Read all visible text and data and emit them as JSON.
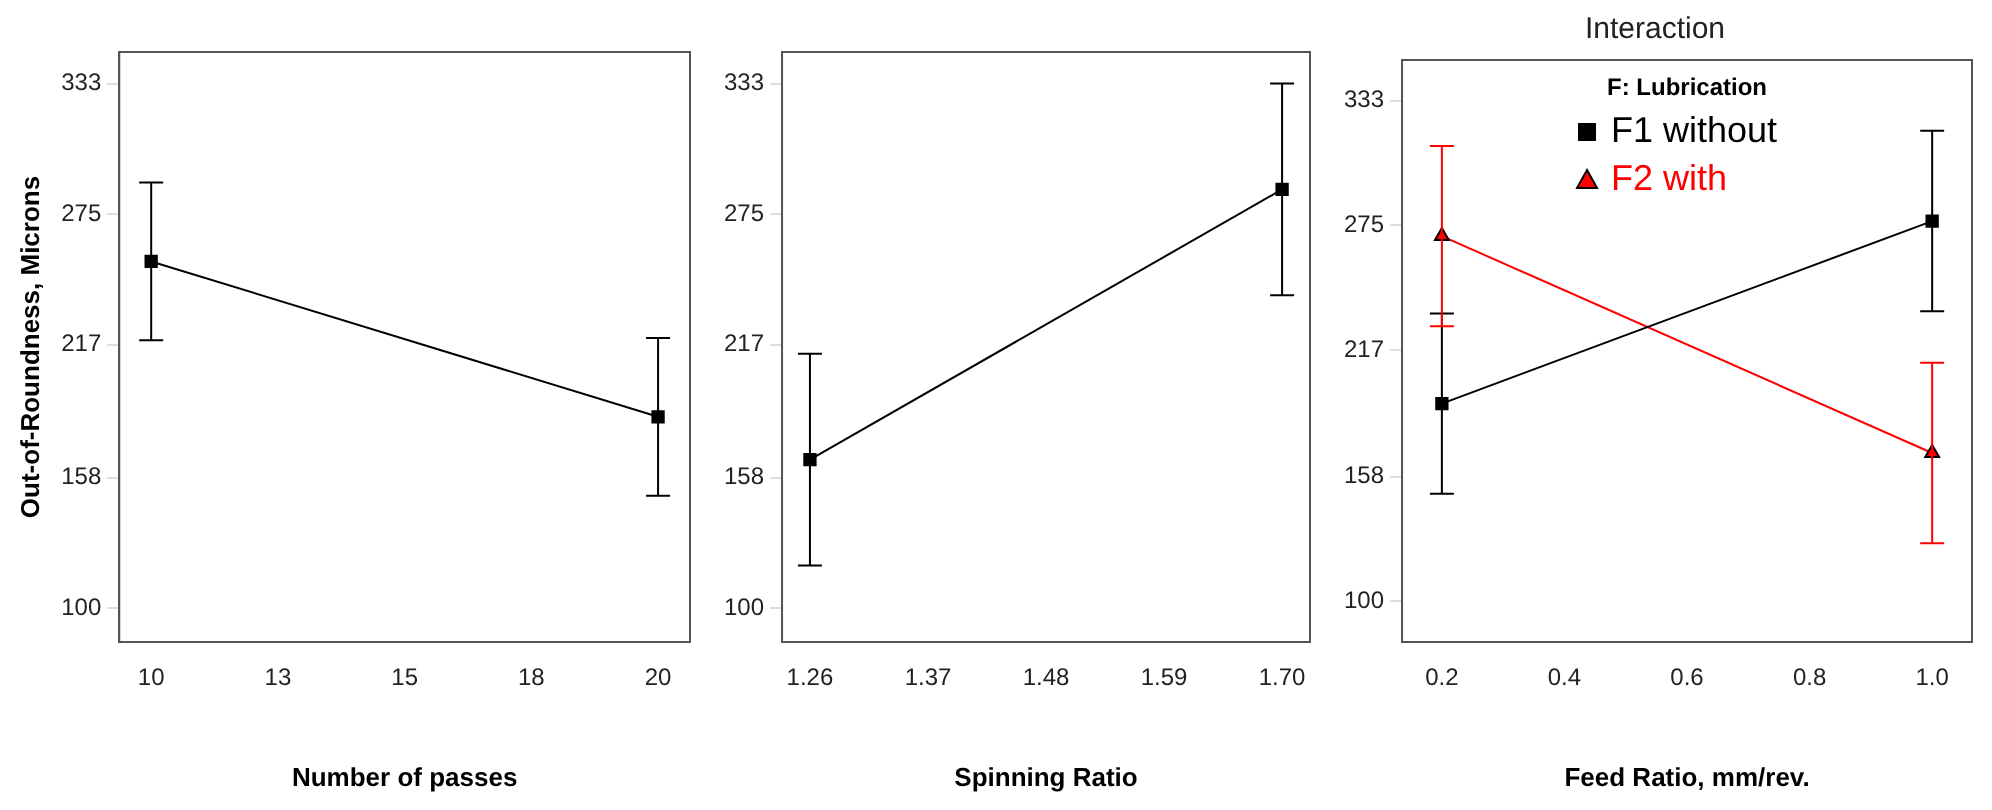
{
  "chart_data": [
    {
      "type": "line",
      "xlabel": "Number of passes",
      "ylabel": "Out-of-Roundness, Microns",
      "xlim": [
        9.37,
        20.63
      ],
      "ylim": [
        85,
        347
      ],
      "xticks": [
        10,
        {
          "value": 12.5,
          "label": "13"
        },
        15,
        {
          "value": 17.5,
          "label": "18"
        },
        20
      ],
      "yticks": [
        100,
        158,
        217,
        275,
        333
      ],
      "grid": false,
      "legend": false,
      "marker": "square",
      "series": [
        {
          "color": "#000000",
          "x": [
            10,
            20
          ],
          "values": [
            254,
            185
          ],
          "errors": [
            35,
            35
          ]
        }
      ]
    },
    {
      "type": "line",
      "xlabel": "Spinning Ratio",
      "xlim": [
        1.234,
        1.726
      ],
      "ylim": [
        85,
        347
      ],
      "xticks": [
        1.26,
        1.37,
        1.48,
        1.59,
        {
          "value": 1.7,
          "label": "1.70"
        }
      ],
      "yticks": [
        100,
        158,
        217,
        275,
        333
      ],
      "grid": false,
      "legend": false,
      "marker": "square",
      "series": [
        {
          "color": "#000000",
          "x": [
            1.26,
            1.7
          ],
          "values": [
            166,
            286
          ],
          "errors": [
            47,
            47
          ]
        }
      ]
    },
    {
      "type": "line",
      "title": "Interaction",
      "legend_title": "F: Lubrication",
      "xlabel": "Feed Ratio, mm/rev.",
      "xlim": [
        0.135,
        1.065
      ],
      "ylim": [
        81,
        352
      ],
      "xticks": [
        0.2,
        0.4,
        0.6,
        0.8,
        {
          "value": 1.0,
          "label": "1.0"
        }
      ],
      "yticks": [
        100,
        158,
        217,
        275,
        333
      ],
      "grid": false,
      "legend": "top",
      "series": [
        {
          "name": "F1 without",
          "color": "#000000",
          "marker": "square",
          "x": [
            0.2,
            1.0
          ],
          "values": [
            192,
            277
          ],
          "errors": [
            42,
            42
          ]
        },
        {
          "name": "F2 with",
          "color": "#ff0000",
          "marker": "triangle",
          "x": [
            0.2,
            1.0
          ],
          "values": [
            270,
            169
          ],
          "errors": [
            42,
            42
          ]
        }
      ]
    }
  ]
}
